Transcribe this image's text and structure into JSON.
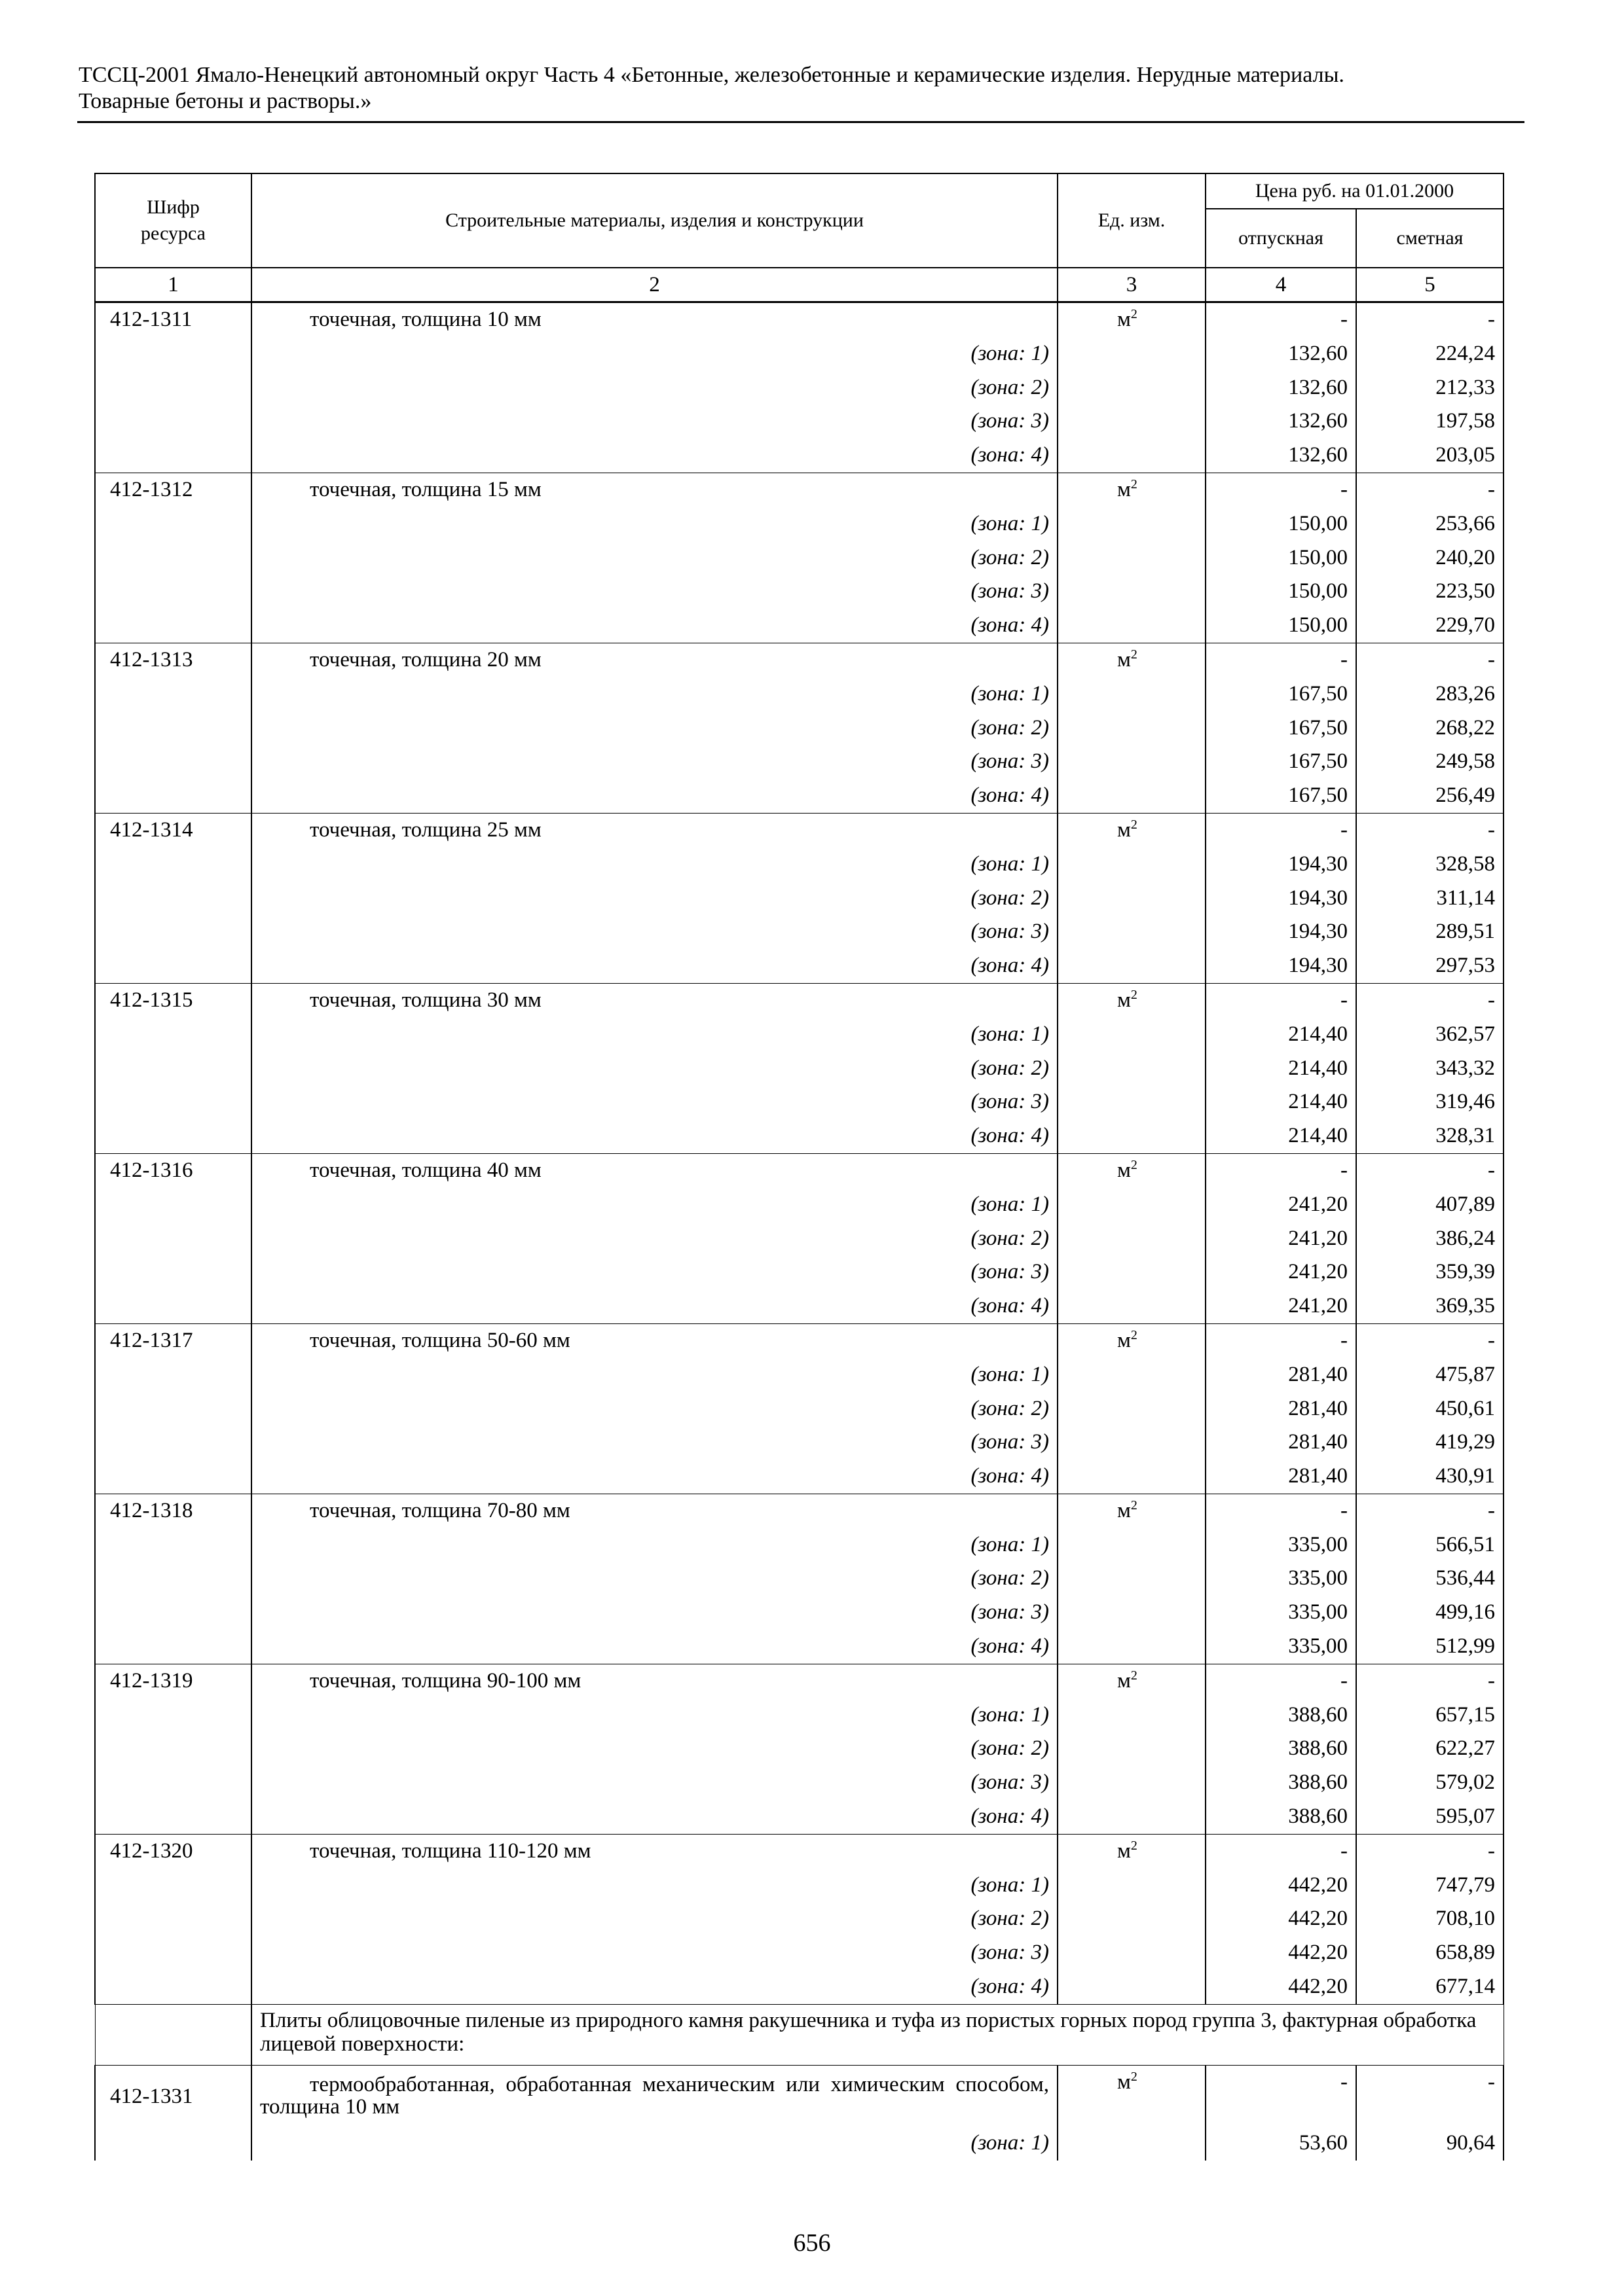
{
  "header": {
    "line1": "ТССЦ-2001 Ямало-Ненецкий автономный округ Часть 4 «Бетонные, железобетонные и керамические изделия. Нерудные материалы.",
    "line2": "Товарные бетоны и растворы.»"
  },
  "table": {
    "col_code": "Шифр ресурса",
    "col_name": "Строительные материалы, изделия и конструкции",
    "col_unit": "Ед. изм.",
    "col_price": "Цена руб. на 01.01.2000",
    "col_release": "отпускная",
    "col_estimate": "сметная",
    "col_numbers": [
      "1",
      "2",
      "3",
      "4",
      "5"
    ],
    "groups": [
      {
        "code": "412-1311",
        "name": "точечная, толщина 10 мм",
        "unit": "м",
        "unit_sup": "2",
        "release": "-",
        "estimate": "-",
        "zones": [
          {
            "label": "(зона: 1)",
            "release": "132,60",
            "estimate": "224,24"
          },
          {
            "label": "(зона: 2)",
            "release": "132,60",
            "estimate": "212,33"
          },
          {
            "label": "(зона: 3)",
            "release": "132,60",
            "estimate": "197,58"
          },
          {
            "label": "(зона: 4)",
            "release": "132,60",
            "estimate": "203,05"
          }
        ]
      },
      {
        "code": "412-1312",
        "name": "точечная, толщина 15 мм",
        "unit": "м",
        "unit_sup": "2",
        "release": "-",
        "estimate": "-",
        "zones": [
          {
            "label": "(зона: 1)",
            "release": "150,00",
            "estimate": "253,66"
          },
          {
            "label": "(зона: 2)",
            "release": "150,00",
            "estimate": "240,20"
          },
          {
            "label": "(зона: 3)",
            "release": "150,00",
            "estimate": "223,50"
          },
          {
            "label": "(зона: 4)",
            "release": "150,00",
            "estimate": "229,70"
          }
        ]
      },
      {
        "code": "412-1313",
        "name": "точечная, толщина 20 мм",
        "unit": "м",
        "unit_sup": "2",
        "release": "-",
        "estimate": "-",
        "zones": [
          {
            "label": "(зона: 1)",
            "release": "167,50",
            "estimate": "283,26"
          },
          {
            "label": "(зона: 2)",
            "release": "167,50",
            "estimate": "268,22"
          },
          {
            "label": "(зона: 3)",
            "release": "167,50",
            "estimate": "249,58"
          },
          {
            "label": "(зона: 4)",
            "release": "167,50",
            "estimate": "256,49"
          }
        ]
      },
      {
        "code": "412-1314",
        "name": "точечная, толщина 25 мм",
        "unit": "м",
        "unit_sup": "2",
        "release": "-",
        "estimate": "-",
        "zones": [
          {
            "label": "(зона: 1)",
            "release": "194,30",
            "estimate": "328,58"
          },
          {
            "label": "(зона: 2)",
            "release": "194,30",
            "estimate": "311,14"
          },
          {
            "label": "(зона: 3)",
            "release": "194,30",
            "estimate": "289,51"
          },
          {
            "label": "(зона: 4)",
            "release": "194,30",
            "estimate": "297,53"
          }
        ]
      },
      {
        "code": "412-1315",
        "name": "точечная, толщина 30 мм",
        "unit": "м",
        "unit_sup": "2",
        "release": "-",
        "estimate": "-",
        "zones": [
          {
            "label": "(зона: 1)",
            "release": "214,40",
            "estimate": "362,57"
          },
          {
            "label": "(зона: 2)",
            "release": "214,40",
            "estimate": "343,32"
          },
          {
            "label": "(зона: 3)",
            "release": "214,40",
            "estimate": "319,46"
          },
          {
            "label": "(зона: 4)",
            "release": "214,40",
            "estimate": "328,31"
          }
        ]
      },
      {
        "code": "412-1316",
        "name": "точечная, толщина 40 мм",
        "unit": "м",
        "unit_sup": "2",
        "release": "-",
        "estimate": "-",
        "zones": [
          {
            "label": "(зона: 1)",
            "release": "241,20",
            "estimate": "407,89"
          },
          {
            "label": "(зона: 2)",
            "release": "241,20",
            "estimate": "386,24"
          },
          {
            "label": "(зона: 3)",
            "release": "241,20",
            "estimate": "359,39"
          },
          {
            "label": "(зона: 4)",
            "release": "241,20",
            "estimate": "369,35"
          }
        ]
      },
      {
        "code": "412-1317",
        "name": "точечная, толщина 50-60 мм",
        "unit": "м",
        "unit_sup": "2",
        "release": "-",
        "estimate": "-",
        "zones": [
          {
            "label": "(зона: 1)",
            "release": "281,40",
            "estimate": "475,87"
          },
          {
            "label": "(зона: 2)",
            "release": "281,40",
            "estimate": "450,61"
          },
          {
            "label": "(зона: 3)",
            "release": "281,40",
            "estimate": "419,29"
          },
          {
            "label": "(зона: 4)",
            "release": "281,40",
            "estimate": "430,91"
          }
        ]
      },
      {
        "code": "412-1318",
        "name": "точечная, толщина 70-80 мм",
        "unit": "м",
        "unit_sup": "2",
        "release": "-",
        "estimate": "-",
        "zones": [
          {
            "label": "(зона: 1)",
            "release": "335,00",
            "estimate": "566,51"
          },
          {
            "label": "(зона: 2)",
            "release": "335,00",
            "estimate": "536,44"
          },
          {
            "label": "(зона: 3)",
            "release": "335,00",
            "estimate": "499,16"
          },
          {
            "label": "(зона: 4)",
            "release": "335,00",
            "estimate": "512,99"
          }
        ]
      },
      {
        "code": "412-1319",
        "name": "точечная, толщина 90-100 мм",
        "unit": "м",
        "unit_sup": "2",
        "release": "-",
        "estimate": "-",
        "zones": [
          {
            "label": "(зона: 1)",
            "release": "388,60",
            "estimate": "657,15"
          },
          {
            "label": "(зона: 2)",
            "release": "388,60",
            "estimate": "622,27"
          },
          {
            "label": "(зона: 3)",
            "release": "388,60",
            "estimate": "579,02"
          },
          {
            "label": "(зона: 4)",
            "release": "388,60",
            "estimate": "595,07"
          }
        ]
      },
      {
        "code": "412-1320",
        "name": "точечная, толщина 110-120 мм",
        "unit": "м",
        "unit_sup": "2",
        "release": "-",
        "estimate": "-",
        "zones": [
          {
            "label": "(зона: 1)",
            "release": "442,20",
            "estimate": "747,79"
          },
          {
            "label": "(зона: 2)",
            "release": "442,20",
            "estimate": "708,10"
          },
          {
            "label": "(зона: 3)",
            "release": "442,20",
            "estimate": "658,89"
          },
          {
            "label": "(зона: 4)",
            "release": "442,20",
            "estimate": "677,14"
          }
        ]
      }
    ],
    "section": "Плиты облицовочные пиленые из природного камня ракушечника и туфа из пористых горных пород группа 3, фактурная обработка лицевой поверхности:",
    "last": {
      "code": "412-1331",
      "name": "термообработанная, обработанная механическим или химическим способом, толщина 10 мм",
      "unit": "м",
      "unit_sup": "2",
      "release": "-",
      "estimate": "-",
      "zones": [
        {
          "label": "(зона: 1)",
          "release": "53,60",
          "estimate": "90,64"
        }
      ]
    }
  },
  "page_number": "656"
}
